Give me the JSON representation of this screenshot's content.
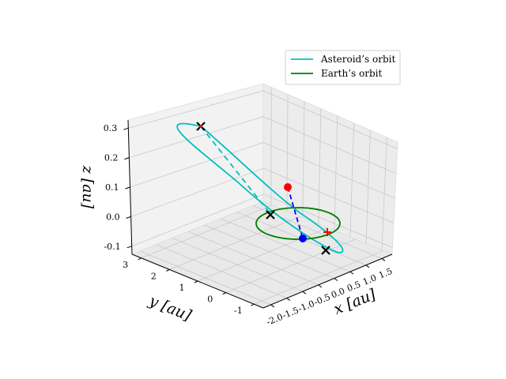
{
  "chart_data": {
    "type": "line3d",
    "xlabel": "x [au]",
    "ylabel": "y [au]",
    "zlabel": "z [au]",
    "xlim": [
      -2.0,
      1.5
    ],
    "ylim": [
      -1,
      3
    ],
    "zlim": [
      -0.1,
      0.3
    ],
    "x_ticks": [
      "-2.0",
      "-1.5",
      "-1.0",
      "-0.5",
      "0.0",
      "0.5",
      "1.0",
      "1.5"
    ],
    "y_ticks": [
      "-1",
      "0",
      "1",
      "2",
      "3"
    ],
    "z_ticks": [
      "-0.1",
      "0.0",
      "0.1",
      "0.2",
      "0.3"
    ],
    "grid": true,
    "legend_position": "upper-right",
    "legend": [
      {
        "label": "Asteroid’s orbit",
        "color": "#00bfbf"
      },
      {
        "label": "Earth’s orbit",
        "color": "#008000"
      }
    ],
    "series": [
      {
        "name": "Asteroid’s orbit",
        "color": "#00bfbf",
        "style": "ellipse-solid-front-dashed-back"
      },
      {
        "name": "Earth’s orbit",
        "color": "#008000",
        "style": "ellipse"
      }
    ],
    "markers": [
      {
        "kind": "asteroid-position",
        "color": "#ff0000",
        "shape": "circle"
      },
      {
        "kind": "earth-position",
        "color": "#0000ff",
        "shape": "circle"
      },
      {
        "kind": "node",
        "color": "#000000",
        "shape": "x"
      },
      {
        "kind": "node",
        "color": "#000000",
        "shape": "x"
      },
      {
        "kind": "apsis",
        "color": "#000000",
        "shape": "x"
      },
      {
        "kind": "perihelion",
        "color": "#ff0000",
        "shape": "+"
      }
    ]
  }
}
